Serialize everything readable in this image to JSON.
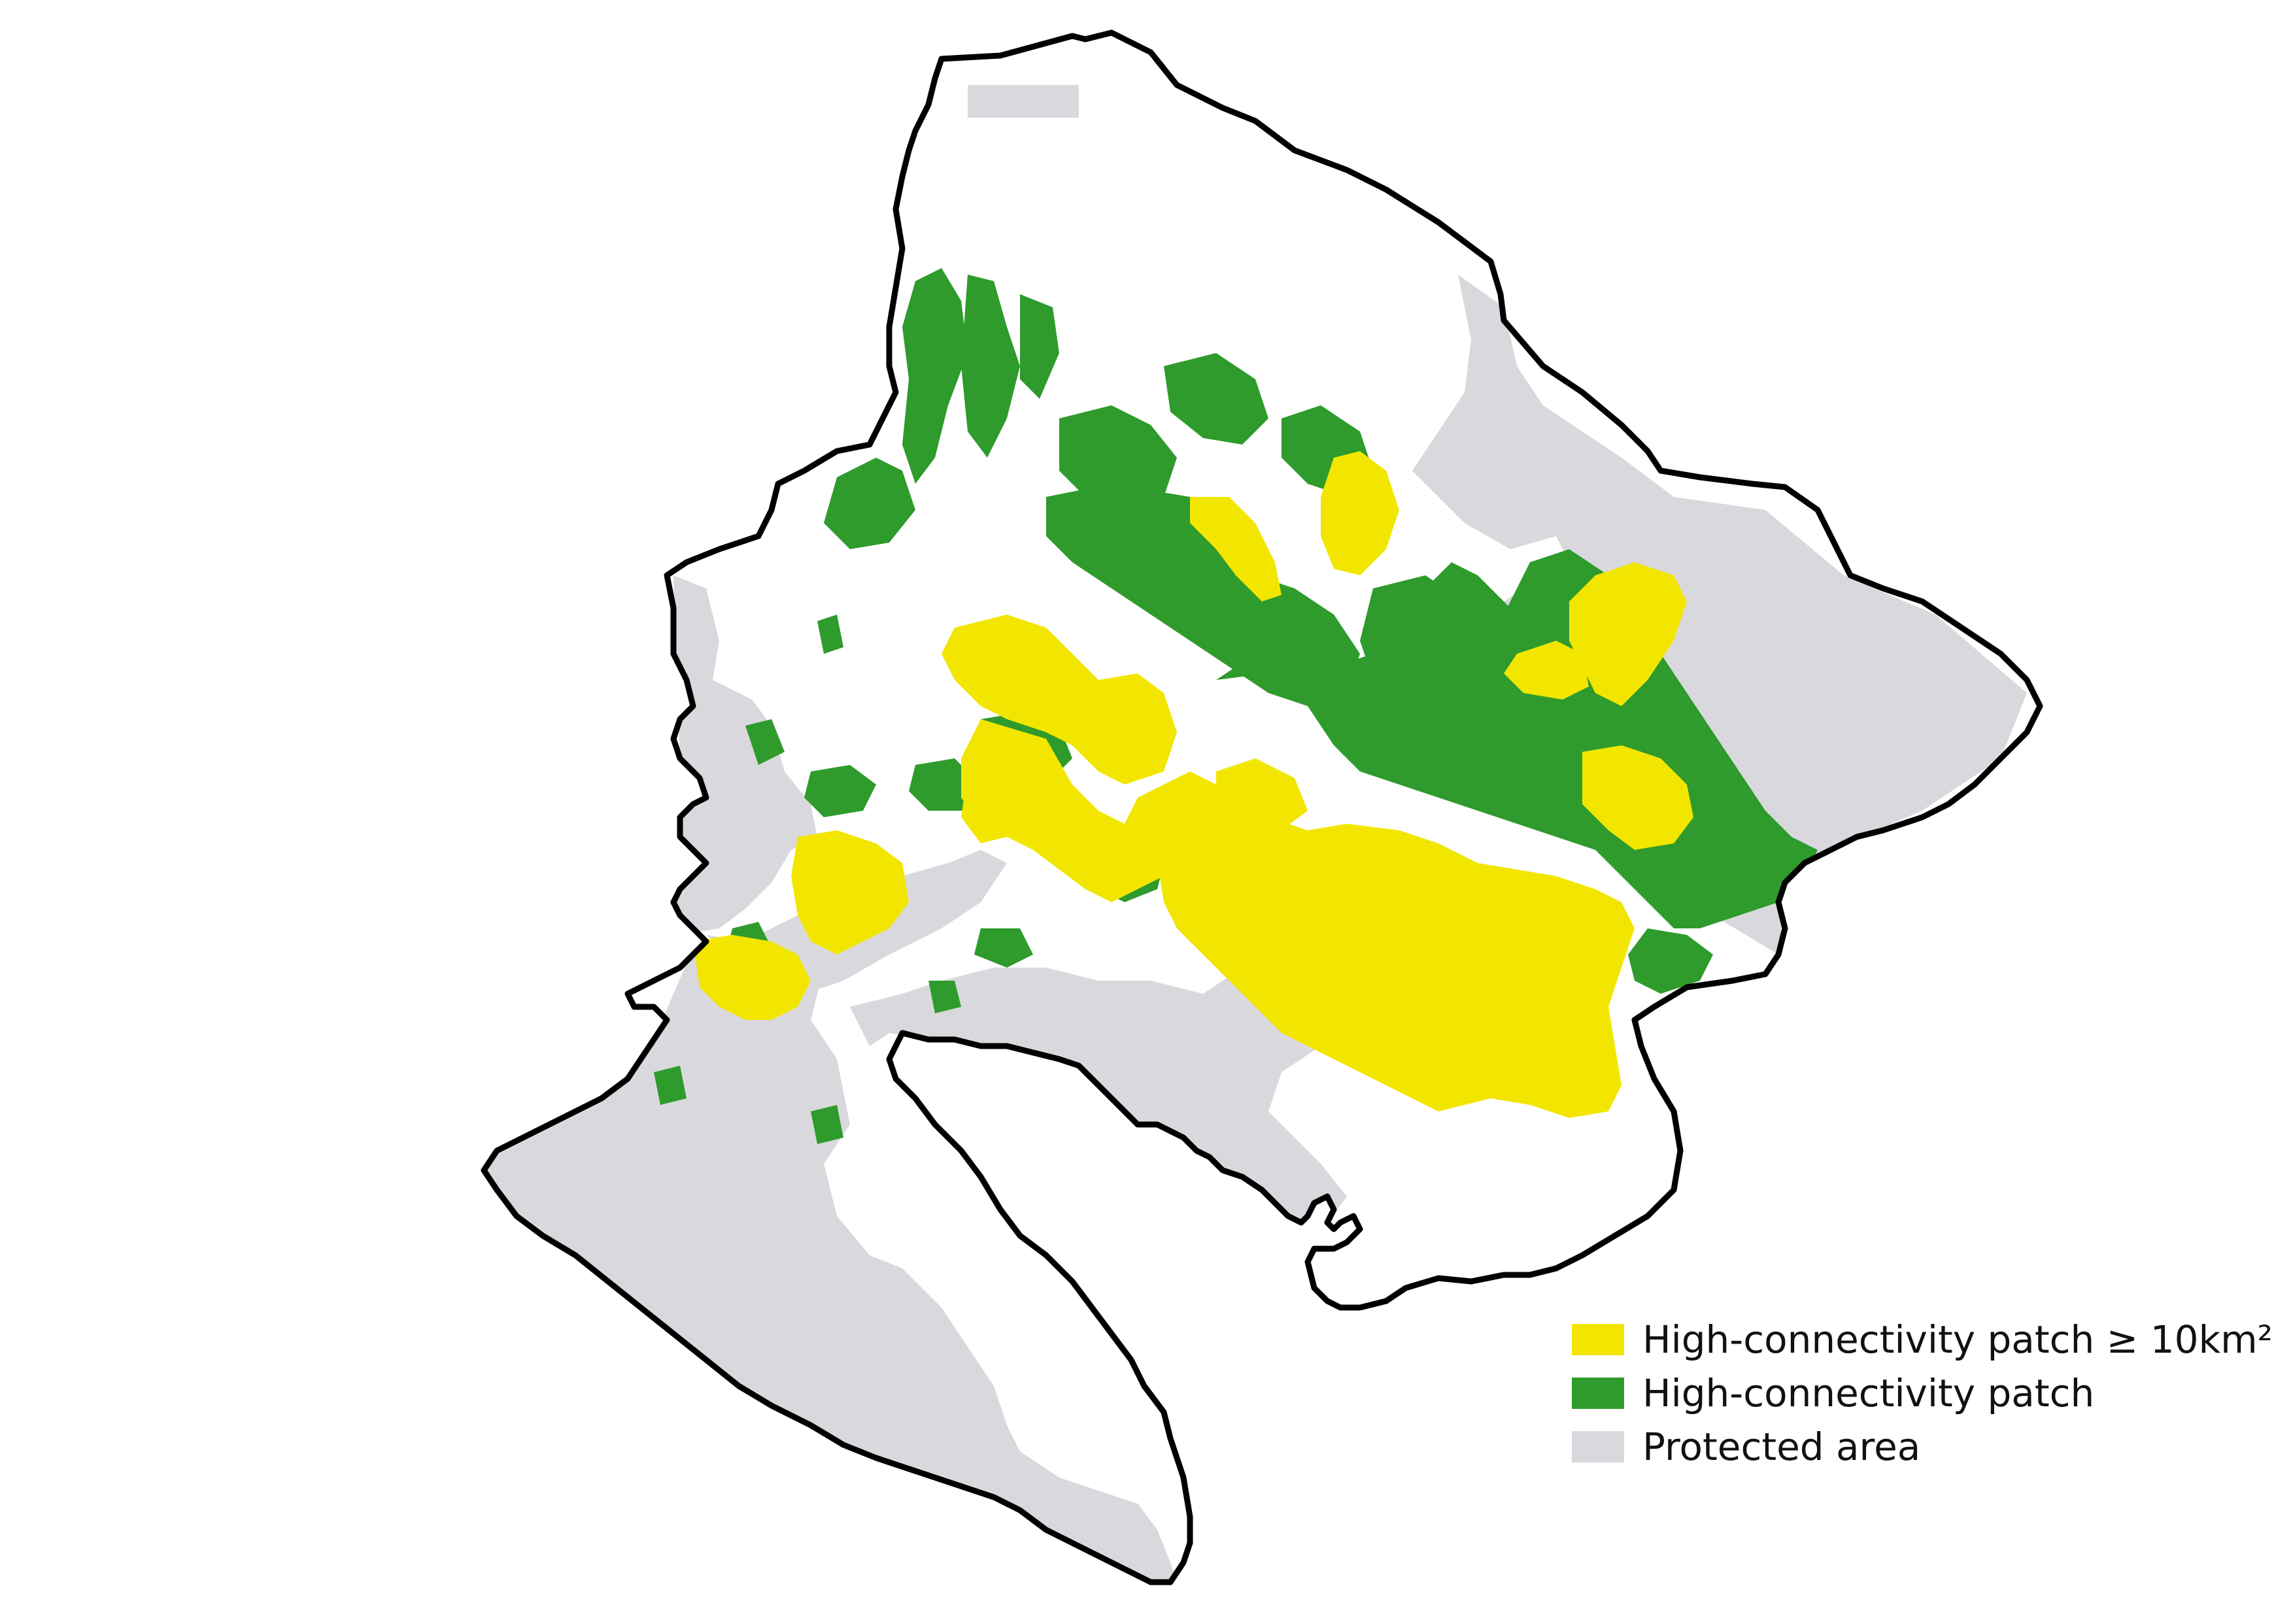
{
  "colors": {
    "high_connectivity_large": "#f2e600",
    "high_connectivity": "#2e9b2c",
    "protected_area": "#d9d9dd",
    "boundary": "#000000",
    "background": "#ffffff"
  },
  "legend": {
    "items": [
      {
        "key": "high_connectivity_large",
        "label": "High-connectivity patch ≥ 10km²"
      },
      {
        "key": "high_connectivity",
        "label": "High-connectivity patch"
      },
      {
        "key": "protected_area",
        "label": "Protected area"
      }
    ]
  }
}
